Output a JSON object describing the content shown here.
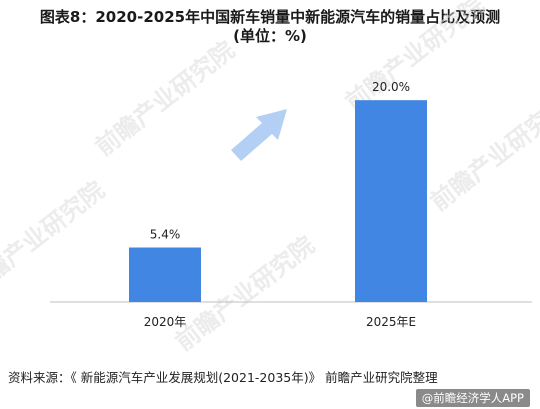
{
  "chart_data": {
    "type": "bar",
    "title": "图表8：2020-2025年中国新车销量中新能源汽车的销量占比及预测",
    "subtitle": "(单位：%)",
    "categories": [
      "2020年",
      "2025年E"
    ],
    "values": [
      5.4,
      20.0
    ],
    "data_labels": [
      "5.4%",
      "20.0%"
    ],
    "ylim": [
      0,
      22
    ],
    "grid": false,
    "legend": "none",
    "bar_color": "#4286e3",
    "arrow_color": "#b3cff3"
  },
  "source": "资料来源：《 新能源汽车产业发展规划(2021-2035年)》 前瞻产业研究院整理",
  "watermark": {
    "text": "前瞻产业研究院",
    "app": "@前瞻经济学人APP",
    "color": "#dddddd"
  }
}
